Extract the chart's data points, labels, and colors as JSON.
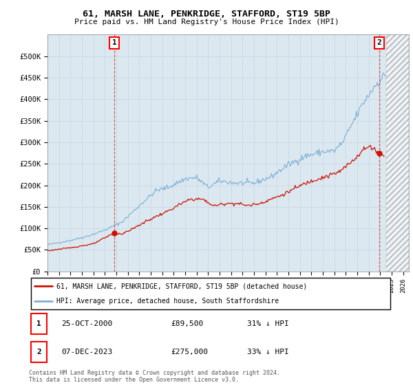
{
  "title": "61, MARSH LANE, PENKRIDGE, STAFFORD, ST19 5BP",
  "subtitle": "Price paid vs. HM Land Registry's House Price Index (HPI)",
  "ylim": [
    0,
    550000
  ],
  "yticks": [
    0,
    50000,
    100000,
    150000,
    200000,
    250000,
    300000,
    350000,
    400000,
    450000,
    500000
  ],
  "ytick_labels": [
    "£0",
    "£50K",
    "£100K",
    "£150K",
    "£200K",
    "£250K",
    "£300K",
    "£350K",
    "£400K",
    "£450K",
    "£500K"
  ],
  "xlim_start": 1995.0,
  "xlim_end": 2026.5,
  "grid_color": "#c8d8e8",
  "plot_bg": "#dce8f0",
  "hpi_color": "#7bafd4",
  "price_color": "#cc1100",
  "legend_label_price": "61, MARSH LANE, PENKRIDGE, STAFFORD, ST19 5BP (detached house)",
  "legend_label_hpi": "HPI: Average price, detached house, South Staffordshire",
  "annotation1_date": "25-OCT-2000",
  "annotation1_price": "£89,500",
  "annotation1_hpi": "31% ↓ HPI",
  "annotation2_date": "07-DEC-2023",
  "annotation2_price": "£275,000",
  "annotation2_hpi": "33% ↓ HPI",
  "footer": "Contains HM Land Registry data © Crown copyright and database right 2024.\nThis data is licensed under the Open Government Licence v3.0.",
  "sale1_x": 2000.83,
  "sale1_y": 89500,
  "sale2_x": 2023.92,
  "sale2_y": 275000,
  "data_end_x": 2024.5
}
